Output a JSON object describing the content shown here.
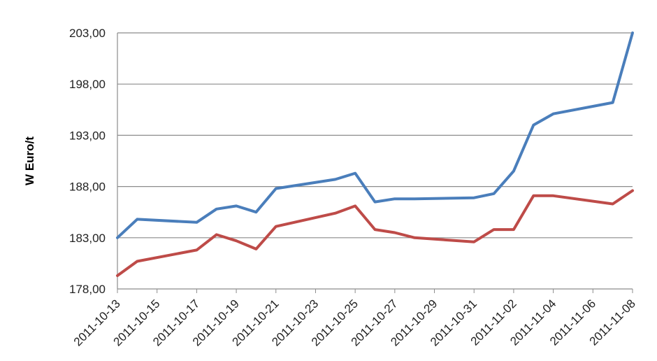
{
  "chart_data": {
    "type": "line",
    "title": "",
    "xlabel": "",
    "ylabel": "W Euro/t",
    "ylim": [
      178,
      203
    ],
    "yticks": [
      "178,00",
      "183,00",
      "188,00",
      "193,00",
      "198,00",
      "203,00"
    ],
    "ytick_values": [
      178,
      183,
      188,
      193,
      198,
      203
    ],
    "grid": true,
    "legend": "none",
    "x_tick_labels": [
      "2011-10-13",
      "2011-10-15",
      "2011-10-17",
      "2011-10-19",
      "2011-10-21",
      "2011-10-23",
      "2011-10-25",
      "2011-10-27",
      "2011-10-29",
      "2011-10-31",
      "2011-11-02",
      "2011-11-04",
      "2011-11-06",
      "2011-11-08"
    ],
    "x": [
      "2011-10-13",
      "2011-10-14",
      "2011-10-17",
      "2011-10-18",
      "2011-10-19",
      "2011-10-20",
      "2011-10-21",
      "2011-10-24",
      "2011-10-25",
      "2011-10-26",
      "2011-10-27",
      "2011-10-28",
      "2011-10-31",
      "2011-11-01",
      "2011-11-02",
      "2011-11-03",
      "2011-11-04",
      "2011-11-07",
      "2011-11-08"
    ],
    "series": [
      {
        "color": "#4a7ebb",
        "values": [
          183.0,
          184.8,
          184.5,
          185.8,
          186.1,
          185.5,
          187.8,
          188.7,
          189.3,
          186.5,
          186.8,
          186.8,
          186.9,
          187.3,
          189.5,
          194.0,
          195.1,
          196.2,
          203.0
        ]
      },
      {
        "color": "#be4b48",
        "values": [
          179.3,
          180.7,
          181.8,
          183.3,
          182.7,
          181.9,
          184.1,
          185.4,
          186.1,
          183.8,
          183.5,
          183.0,
          182.6,
          183.8,
          183.8,
          187.1,
          187.1,
          186.3,
          187.6
        ]
      }
    ]
  }
}
